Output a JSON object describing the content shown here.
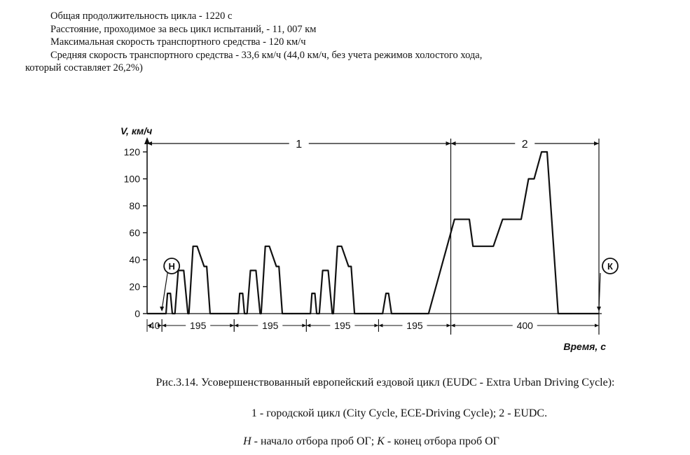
{
  "intro": {
    "line1": "Общая продолжительность цикла - 1220 с",
    "line2": "Расстояние, проходимое за весь цикл испытаний, - 11, 007 км",
    "line3": "Максимальная скорость транспортного средства - 120 км/ч",
    "line4": "Средняя скорость транспортного средства - 33,6 км/ч (44,0 км/ч, без учета режимов холостого хода,",
    "line5": "который составляет 26,2%)"
  },
  "caption": {
    "line1": "Рис.3.14. Усовершенствованный европейский ездовой цикл (EUDC - Extra Urban Driving Cycle):",
    "line2": "1 - городской цикл (City Cycle, ECE-Driving Cycle);  2 - EUDC.",
    "line3_h": "Н",
    "line3_mid": " - начало отбора проб ОГ;   ",
    "line3_k": "К",
    "line3_end": " - конец отбора проб ОГ"
  },
  "chart_data": {
    "type": "line",
    "title": "",
    "xlabel": "Время, с",
    "ylabel": "V, км/ч",
    "ylim": [
      0,
      120
    ],
    "xlim": [
      0,
      1220
    ],
    "yticks": [
      0,
      20,
      40,
      60,
      80,
      100,
      120
    ],
    "grid": false,
    "segments": [
      {
        "label": "40",
        "from": 0,
        "to": 40
      },
      {
        "label": "195",
        "from": 40,
        "to": 235
      },
      {
        "label": "195",
        "from": 235,
        "to": 430
      },
      {
        "label": "195",
        "from": 430,
        "to": 625
      },
      {
        "label": "195",
        "from": 625,
        "to": 820
      },
      {
        "label": "400",
        "from": 820,
        "to": 1220
      }
    ],
    "phases": [
      {
        "label": "1",
        "from": 0,
        "to": 820
      },
      {
        "label": "2",
        "from": 820,
        "to": 1220
      }
    ],
    "markers": [
      {
        "label": "Н",
        "x": 40
      },
      {
        "label": "К",
        "x": 1220
      }
    ],
    "series": [
      {
        "x": [
          0,
          40,
          51,
          55,
          63,
          68,
          75,
          84,
          99,
          110,
          113,
          124,
          135,
          154,
          161,
          170,
          180,
          190,
          197,
          235,
          246,
          250,
          258,
          263,
          270,
          279,
          294,
          305,
          308,
          319,
          330,
          349,
          356,
          365,
          375,
          385,
          392,
          430,
          441,
          445,
          453,
          458,
          465,
          474,
          489,
          500,
          503,
          514,
          525,
          544,
          551,
          560,
          570,
          580,
          587,
          625,
          636,
          645,
          652,
          660,
          690,
          740,
          760,
          830,
          870,
          880,
          935,
          960,
          1010,
          1030,
          1045,
          1065,
          1080,
          1110,
          1145,
          1165,
          1195,
          1220
        ],
        "y": [
          0,
          0,
          0,
          15,
          15,
          0,
          0,
          32,
          32,
          0,
          0,
          50,
          50,
          35,
          35,
          0,
          0,
          0,
          0,
          0,
          0,
          15,
          15,
          0,
          0,
          32,
          32,
          0,
          0,
          50,
          50,
          35,
          35,
          0,
          0,
          0,
          0,
          0,
          0,
          15,
          15,
          0,
          0,
          32,
          32,
          0,
          0,
          50,
          50,
          35,
          35,
          0,
          0,
          0,
          0,
          0,
          0,
          15,
          15,
          0,
          0,
          0,
          0,
          70,
          70,
          50,
          50,
          70,
          70,
          100,
          100,
          120,
          120,
          0,
          0,
          0,
          0,
          0
        ]
      }
    ]
  }
}
